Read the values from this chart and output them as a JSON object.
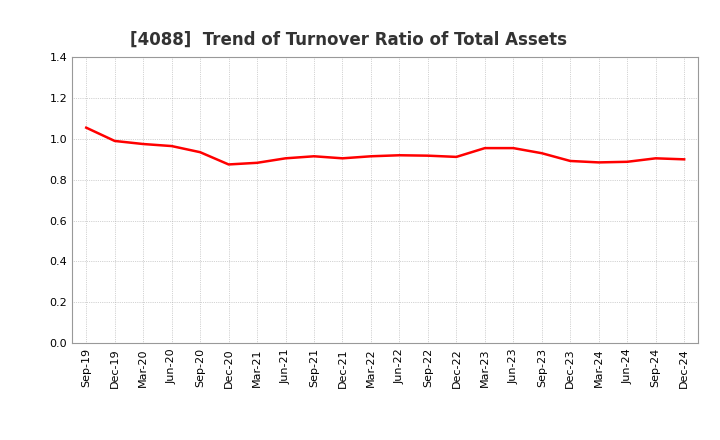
{
  "title": "[4088]  Trend of Turnover Ratio of Total Assets",
  "x_labels": [
    "Sep-19",
    "Dec-19",
    "Mar-20",
    "Jun-20",
    "Sep-20",
    "Dec-20",
    "Mar-21",
    "Jun-21",
    "Sep-21",
    "Dec-21",
    "Mar-22",
    "Jun-22",
    "Sep-22",
    "Dec-22",
    "Mar-23",
    "Jun-23",
    "Sep-23",
    "Dec-23",
    "Mar-24",
    "Jun-24",
    "Sep-24",
    "Dec-24"
  ],
  "y_values": [
    1.055,
    0.99,
    0.975,
    0.965,
    0.935,
    0.875,
    0.883,
    0.905,
    0.915,
    0.905,
    0.915,
    0.92,
    0.918,
    0.912,
    0.955,
    0.955,
    0.93,
    0.892,
    0.885,
    0.888,
    0.905,
    0.9
  ],
  "line_color": "#FF0000",
  "line_width": 1.8,
  "ylim": [
    0.0,
    1.4
  ],
  "yticks": [
    0.0,
    0.2,
    0.4,
    0.6,
    0.8,
    1.0,
    1.2,
    1.4
  ],
  "background_color": "#ffffff",
  "plot_bg_color": "#ffffff",
  "grid_color": "#aaaaaa",
  "title_fontsize": 12,
  "tick_fontsize": 8,
  "title_color": "#333333"
}
